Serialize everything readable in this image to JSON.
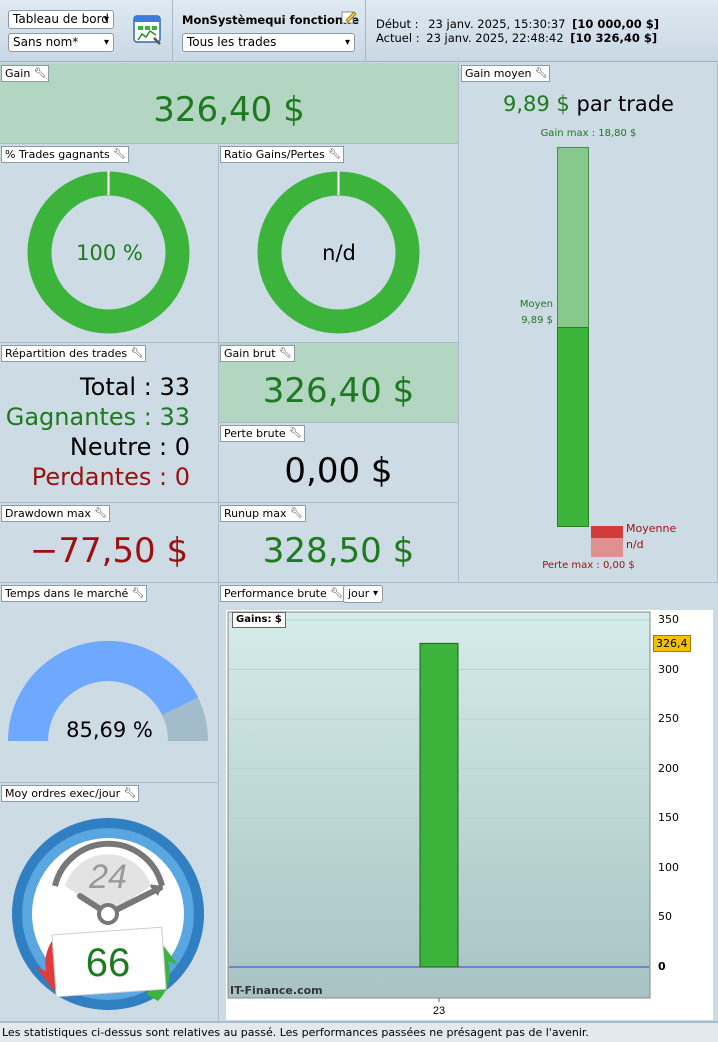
{
  "toolbar": {
    "view_select": "Tableau de bord",
    "name_select": "Sans nom*",
    "system_label": "MonSystèmequi fonctionne",
    "trades_select": "Tous les trades",
    "start_label": "Début :",
    "start_date": "23 janv. 2025, 15:30:37",
    "start_value": "[10 000,00 $]",
    "current_label": "Actuel :",
    "current_date": "23 janv. 2025, 22:48:42",
    "current_value": "[10 326,40 $]"
  },
  "gain": {
    "title": "Gain",
    "value": "326,40 $"
  },
  "avg_gain": {
    "title": "Gain moyen",
    "value": "9,89 $",
    "suffix": "par trade",
    "max_label": "Gain max : 18,80 $",
    "avg_label_1": "Moyen",
    "avg_label_2": "9,89 $",
    "loss_avg_label_1": "Moyenne",
    "loss_avg_label_2": "n/d",
    "loss_max_label": "Perte max : 0,00 $",
    "gain_max": 18.8,
    "gain_avg": 9.89
  },
  "win_rate": {
    "title": "% Trades gagnants",
    "value": "100 %",
    "percent": 100
  },
  "ratio": {
    "title": "Ratio Gains/Pertes",
    "value": "n/d"
  },
  "distribution": {
    "title": "Répartition des trades",
    "lines": [
      {
        "label": "Total",
        "value": "33"
      },
      {
        "label": "Gagnantes",
        "value": "33"
      },
      {
        "label": "Neutre",
        "value": "0"
      },
      {
        "label": "Perdantes",
        "value": "0"
      }
    ],
    "sep": " : "
  },
  "gross_gain": {
    "title": "Gain brut",
    "value": "326,40 $"
  },
  "gross_loss": {
    "title": "Perte brute",
    "value": "0,00 $"
  },
  "drawdown": {
    "title": "Drawdown max",
    "value": "−77,50 $"
  },
  "runup": {
    "title": "Runup max",
    "value": "328,50 $"
  },
  "time_in_market": {
    "title": "Temps dans le marché",
    "value": "85,69 %",
    "percent": 85.69
  },
  "orders": {
    "title": "Moy ordres exec/jour",
    "dial_label": "24",
    "value": "66"
  },
  "performance": {
    "title": "Performance brute",
    "period_select": "jour",
    "series_badge": "Gains: $",
    "last_value_tag": "326,4",
    "watermark": "IT-Finance.com"
  },
  "chart_data": {
    "type": "bar",
    "categories": [
      "23"
    ],
    "series": [
      {
        "name": "Gains: $",
        "values": [
          326.4
        ]
      }
    ],
    "yticks": [
      "350",
      "300",
      "250",
      "200",
      "150",
      "100",
      "50",
      "0"
    ],
    "ylim": [
      0,
      350
    ],
    "title": "",
    "xlabel": "",
    "ylabel": ""
  },
  "footer": {
    "text": "Les statistiques ci-dessus sont relatives au passé. Les performances passées ne présagent pas de l'avenir."
  },
  "colors": {
    "green": "#3cb43c",
    "dark_green": "#1e7a1e",
    "red": "#9c1010",
    "blue": "#6fa8ff"
  }
}
